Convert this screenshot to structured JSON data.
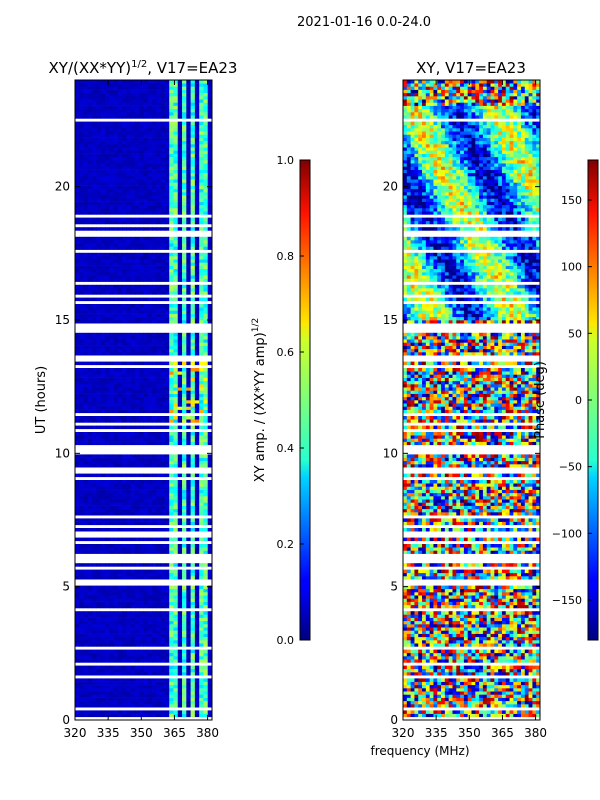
{
  "suptitle": "2021-01-16 0.0-24.0",
  "xlabel": "frequency (MHz)",
  "chart_data": [
    {
      "type": "heatmap",
      "title_main": "XY/(XX*YY)",
      "title_exp": "1/2",
      "title_tail": ", V17=EA23",
      "ylabel": "UT (hours)",
      "x_ticks": [
        320,
        335,
        350,
        365,
        380
      ],
      "xlim": [
        320,
        382
      ],
      "y_ticks": [
        0,
        5,
        10,
        15,
        20
      ],
      "ylim": [
        0,
        24
      ],
      "colorbar": {
        "label_main": "XY amp. / (XX*YY amp)",
        "label_exp": "1/2",
        "range": [
          0.0,
          1.0
        ],
        "ticks": [
          "0.0",
          "0.2",
          "0.4",
          "0.6",
          "0.8",
          "1.0"
        ],
        "tick_values": [
          0.0,
          0.2,
          0.4,
          0.6,
          0.8,
          1.0
        ],
        "colormap": "jet"
      }
    },
    {
      "type": "heatmap",
      "title": "XY, V17=EA23",
      "x_ticks": [
        320,
        335,
        350,
        365,
        380
      ],
      "xlim": [
        320,
        382
      ],
      "y_ticks": [
        0,
        5,
        10,
        15,
        20
      ],
      "ylim": [
        0,
        24
      ],
      "colorbar": {
        "label": "Phase (deg)",
        "range": [
          -180,
          180
        ],
        "ticks": [
          "−150",
          "−100",
          "−50",
          "0",
          "50",
          "100",
          "150"
        ],
        "tick_values": [
          -150,
          -100,
          -50,
          0,
          50,
          100,
          150
        ],
        "colormap": "jet"
      }
    }
  ]
}
